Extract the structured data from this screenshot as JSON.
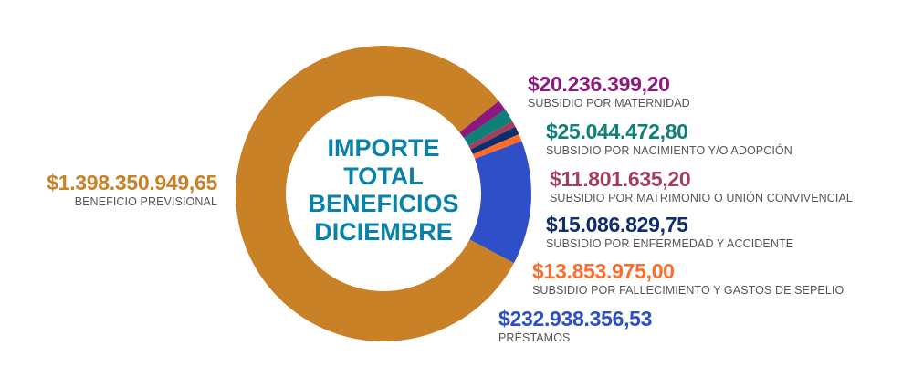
{
  "chart_data": {
    "type": "pie",
    "variant": "donut",
    "title": "IMPORTE TOTAL BENEFICIOS DICIEMBRE",
    "title_lines": [
      "IMPORTE",
      "TOTAL",
      "BENEFICIOS",
      "DICIEMBRE"
    ],
    "slices": [
      {
        "key": "maternidad",
        "label": "SUBSIDIO POR MATERNIDAD",
        "value": 20236399.2,
        "display": "$20.236.399,20",
        "color": "#8B1A7E"
      },
      {
        "key": "nacimiento",
        "label": "SUBSIDIO POR NACIMIENTO Y/O ADOPCIÓN",
        "value": 25044472.8,
        "display": "$25.044.472,80",
        "color": "#0E8078"
      },
      {
        "key": "matrimonio",
        "label": "SUBSIDIO POR MATRIMONIO O UNIÓN CONVIVENCIAL",
        "value": 11801635.2,
        "display": "$11.801.635,20",
        "color": "#A23F5E"
      },
      {
        "key": "enfermedad",
        "label": "SUBSIDIO POR ENFERMEDAD Y ACCIDENTE",
        "value": 15086829.75,
        "display": "$15.086.829,75",
        "color": "#0F2D6B"
      },
      {
        "key": "fallecimiento",
        "label": "SUBSIDIO POR FALLECIMIENTO Y GASTOS DE SEPELIO",
        "value": 13853975.0,
        "display": "$13.853.975,00",
        "color": "#FF6B2B"
      },
      {
        "key": "prestamos",
        "label": "PRÉSTAMOS",
        "value": 232938356.53,
        "display": "$232.938.356,53",
        "color": "#2E4FC7"
      },
      {
        "key": "beneficio",
        "label": "BENEFICIO PREVISIONAL",
        "value": 1398350949.65,
        "display": "$1.398.350.949,65",
        "color": "#C98127"
      }
    ]
  }
}
